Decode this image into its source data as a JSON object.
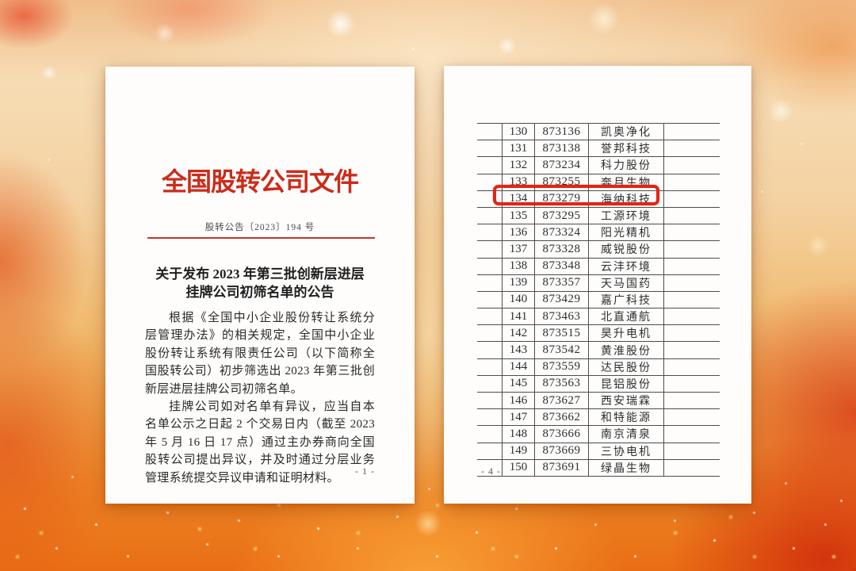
{
  "colors": {
    "title_red": "#cc2b1a",
    "rule_red": "#c43527",
    "highlight_box_red": "#e02516",
    "background_orange": "#ee8524"
  },
  "left_page": {
    "title": "全国股转公司文件",
    "doc_number": "股转公告〔2023〕194 号",
    "heading_lines": [
      "关于发布 2023 年第三批创新层进层",
      "挂牌公司初筛名单的公告"
    ],
    "paragraphs": [
      "根据《全国中小企业股份转让系统分层管理办法》的相关规定，全国中小企业股份转让系统有限责任公司（以下简称全国股转公司）初步筛选出 2023 年第三批创新层进层挂牌公司初筛名单。",
      "挂牌公司如对名单有异议，应当自本名单公示之日起 2 个交易日内（截至 2023 年 5 月 16 日 17 点）通过主办券商向全国股转公司提出异议，并及时通过分层业务管理系统提交异议申请和证明材料。"
    ],
    "page_number": "- 1 -"
  },
  "right_page": {
    "page_number": "- 4 -",
    "highlighted_row_no": "134",
    "rows": [
      {
        "no": "130",
        "code": "873136",
        "name": "凯奥净化",
        "highlight": false
      },
      {
        "no": "131",
        "code": "873138",
        "name": "誉邦科技",
        "highlight": false
      },
      {
        "no": "132",
        "code": "873234",
        "name": "科力股份",
        "highlight": false
      },
      {
        "no": "133",
        "code": "873255",
        "name": "奔月生物",
        "highlight": false
      },
      {
        "no": "134",
        "code": "873279",
        "name": "海纳科技",
        "highlight": true
      },
      {
        "no": "135",
        "code": "873295",
        "name": "工源环境",
        "highlight": false
      },
      {
        "no": "136",
        "code": "873324",
        "name": "阳光精机",
        "highlight": false
      },
      {
        "no": "137",
        "code": "873328",
        "name": "威锐股份",
        "highlight": false
      },
      {
        "no": "138",
        "code": "873348",
        "name": "云沣环境",
        "highlight": false
      },
      {
        "no": "139",
        "code": "873357",
        "name": "天马国药",
        "highlight": false
      },
      {
        "no": "140",
        "code": "873429",
        "name": "嘉广科技",
        "highlight": false
      },
      {
        "no": "141",
        "code": "873463",
        "name": "北直通航",
        "highlight": false
      },
      {
        "no": "142",
        "code": "873515",
        "name": "昊升电机",
        "highlight": false
      },
      {
        "no": "143",
        "code": "873542",
        "name": "黄淮股份",
        "highlight": false
      },
      {
        "no": "144",
        "code": "873559",
        "name": "达民股份",
        "highlight": false
      },
      {
        "no": "145",
        "code": "873563",
        "name": "昆铝股份",
        "highlight": false
      },
      {
        "no": "146",
        "code": "873627",
        "name": "西安瑞霖",
        "highlight": false
      },
      {
        "no": "147",
        "code": "873662",
        "name": "和特能源",
        "highlight": false
      },
      {
        "no": "148",
        "code": "873666",
        "name": "南京清泉",
        "highlight": false
      },
      {
        "no": "149",
        "code": "873669",
        "name": "三协电机",
        "highlight": false
      },
      {
        "no": "150",
        "code": "873691",
        "name": "绿晶生物",
        "highlight": false
      }
    ]
  }
}
